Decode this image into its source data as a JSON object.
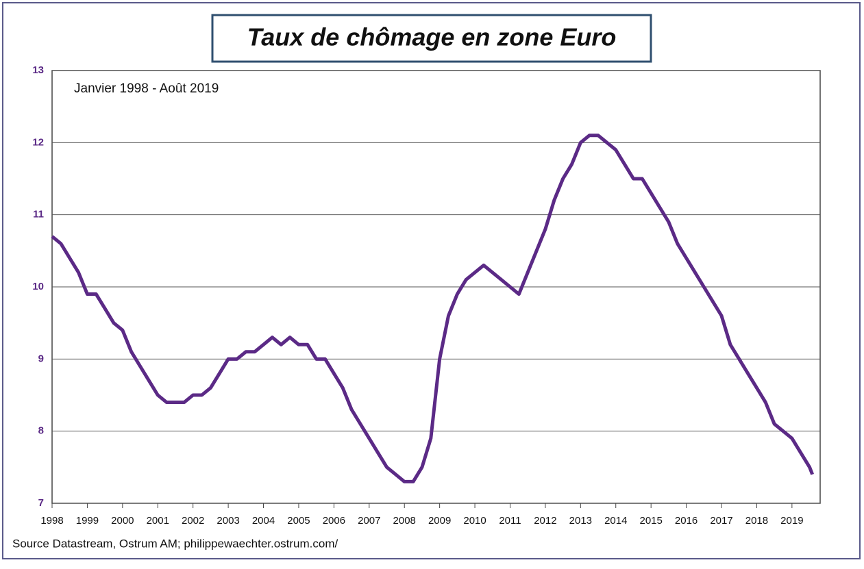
{
  "chart_data": {
    "type": "line",
    "title": "Taux de chômage en zone Euro",
    "subtitle": "Janvier 1998 - Août 2019",
    "source": "Source Datastream, Ostrum AM; philippewaechter.ostrum.com/",
    "x": [
      1998,
      1998.25,
      1998.5,
      1998.75,
      1999,
      1999.25,
      1999.5,
      1999.75,
      2000,
      2000.25,
      2000.5,
      2000.75,
      2001,
      2001.25,
      2001.5,
      2001.75,
      2002,
      2002.25,
      2002.5,
      2002.75,
      2003,
      2003.25,
      2003.5,
      2003.75,
      2004,
      2004.25,
      2004.5,
      2004.75,
      2005,
      2005.25,
      2005.5,
      2005.75,
      2006,
      2006.25,
      2006.5,
      2006.75,
      2007,
      2007.25,
      2007.5,
      2007.75,
      2008,
      2008.25,
      2008.5,
      2008.75,
      2009,
      2009.25,
      2009.5,
      2009.75,
      2010,
      2010.25,
      2010.5,
      2010.75,
      2011,
      2011.25,
      2011.5,
      2011.75,
      2012,
      2012.25,
      2012.5,
      2012.75,
      2013,
      2013.25,
      2013.5,
      2013.75,
      2014,
      2014.25,
      2014.5,
      2014.75,
      2015,
      2015.25,
      2015.5,
      2015.75,
      2016,
      2016.25,
      2016.5,
      2016.75,
      2017,
      2017.25,
      2017.5,
      2017.75,
      2018,
      2018.25,
      2018.5,
      2018.75,
      2019,
      2019.25,
      2019.5,
      2019.58
    ],
    "series": [
      {
        "name": "Taux de chômage",
        "color": "#5b2a86",
        "values": [
          10.7,
          10.6,
          10.4,
          10.2,
          9.9,
          9.9,
          9.7,
          9.5,
          9.4,
          9.1,
          8.9,
          8.7,
          8.5,
          8.4,
          8.4,
          8.4,
          8.5,
          8.5,
          8.6,
          8.8,
          9.0,
          9.0,
          9.1,
          9.1,
          9.2,
          9.3,
          9.2,
          9.3,
          9.2,
          9.2,
          9.0,
          9.0,
          8.8,
          8.6,
          8.3,
          8.1,
          7.9,
          7.7,
          7.5,
          7.4,
          7.3,
          7.3,
          7.5,
          7.9,
          9.0,
          9.6,
          9.9,
          10.1,
          10.2,
          10.3,
          10.2,
          10.1,
          10.0,
          9.9,
          10.2,
          10.5,
          10.8,
          11.2,
          11.5,
          11.7,
          12.0,
          12.1,
          12.1,
          12.0,
          11.9,
          11.7,
          11.5,
          11.5,
          11.3,
          11.1,
          10.9,
          10.6,
          10.4,
          10.2,
          10.0,
          9.8,
          9.6,
          9.2,
          9.0,
          8.8,
          8.6,
          8.4,
          8.1,
          8.0,
          7.9,
          7.7,
          7.5,
          7.4
        ]
      }
    ],
    "xlim": [
      1998,
      2019.8
    ],
    "xticks": [
      1998,
      1999,
      2000,
      2001,
      2002,
      2003,
      2004,
      2005,
      2006,
      2007,
      2008,
      2009,
      2010,
      2011,
      2012,
      2013,
      2014,
      2015,
      2016,
      2017,
      2018,
      2019
    ],
    "ylim": [
      7,
      13
    ],
    "yticks": [
      7,
      8,
      9,
      10,
      11,
      12,
      13
    ],
    "grid": true
  }
}
